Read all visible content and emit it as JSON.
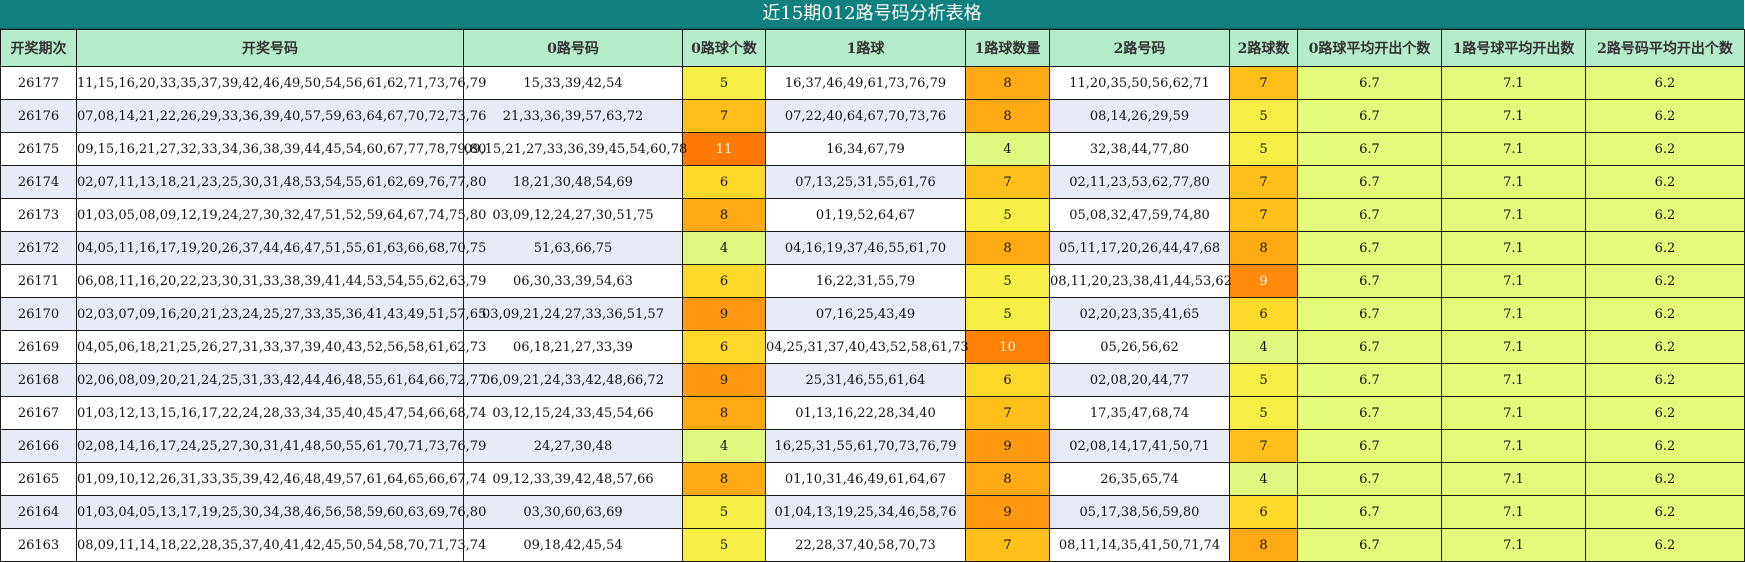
{
  "title": "近15期012路号码分析表格",
  "headers": [
    "开奖期次",
    "开奖号码",
    "0路号码",
    "0路球个数",
    "1路球",
    "1路球数量",
    "2路号码",
    "2路球数",
    "0路球平均开出个数",
    "1路号球平均开出数",
    "2路号码平均开出个数"
  ],
  "rows": [
    {
      "period": "26177",
      "numbers": "11,15,16,20,33,35,37,39,42,46,49,50,54,56,61,62,71,73,76,79",
      "r0": "15,33,39,42,54",
      "c0": "5",
      "r1": "16,37,46,49,61,73,76,79",
      "c1": "8",
      "r2": "11,20,35,50,56,62,71",
      "c2": "7",
      "a0": "6.7",
      "a1": "7.1",
      "a2": "6.2"
    },
    {
      "period": "26176",
      "numbers": "07,08,14,21,22,26,29,33,36,39,40,57,59,63,64,67,70,72,73,76",
      "r0": "21,33,36,39,57,63,72",
      "c0": "7",
      "r1": "07,22,40,64,67,70,73,76",
      "c1": "8",
      "r2": "08,14,26,29,59",
      "c2": "5",
      "a0": "6.7",
      "a1": "7.1",
      "a2": "6.2"
    },
    {
      "period": "26175",
      "numbers": "09,15,16,21,27,32,33,34,36,38,39,44,45,54,60,67,77,78,79,80",
      "r0": "09,15,21,27,33,36,39,45,54,60,78",
      "c0": "11",
      "r1": "16,34,67,79",
      "c1": "4",
      "r2": "32,38,44,77,80",
      "c2": "5",
      "a0": "6.7",
      "a1": "7.1",
      "a2": "6.2"
    },
    {
      "period": "26174",
      "numbers": "02,07,11,13,18,21,23,25,30,31,48,53,54,55,61,62,69,76,77,80",
      "r0": "18,21,30,48,54,69",
      "c0": "6",
      "r1": "07,13,25,31,55,61,76",
      "c1": "7",
      "r2": "02,11,23,53,62,77,80",
      "c2": "7",
      "a0": "6.7",
      "a1": "7.1",
      "a2": "6.2"
    },
    {
      "period": "26173",
      "numbers": "01,03,05,08,09,12,19,24,27,30,32,47,51,52,59,64,67,74,75,80",
      "r0": "03,09,12,24,27,30,51,75",
      "c0": "8",
      "r1": "01,19,52,64,67",
      "c1": "5",
      "r2": "05,08,32,47,59,74,80",
      "c2": "7",
      "a0": "6.7",
      "a1": "7.1",
      "a2": "6.2"
    },
    {
      "period": "26172",
      "numbers": "04,05,11,16,17,19,20,26,37,44,46,47,51,55,61,63,66,68,70,75",
      "r0": "51,63,66,75",
      "c0": "4",
      "r1": "04,16,19,37,46,55,61,70",
      "c1": "8",
      "r2": "05,11,17,20,26,44,47,68",
      "c2": "8",
      "a0": "6.7",
      "a1": "7.1",
      "a2": "6.2"
    },
    {
      "period": "26171",
      "numbers": "06,08,11,16,20,22,23,30,31,33,38,39,41,44,53,54,55,62,63,79",
      "r0": "06,30,33,39,54,63",
      "c0": "6",
      "r1": "16,22,31,55,79",
      "c1": "5",
      "r2": "08,11,20,23,38,41,44,53,62",
      "c2": "9",
      "a0": "6.7",
      "a1": "7.1",
      "a2": "6.2"
    },
    {
      "period": "26170",
      "numbers": "02,03,07,09,16,20,21,23,24,25,27,33,35,36,41,43,49,51,57,65",
      "r0": "03,09,21,24,27,33,36,51,57",
      "c0": "9",
      "r1": "07,16,25,43,49",
      "c1": "5",
      "r2": "02,20,23,35,41,65",
      "c2": "6",
      "a0": "6.7",
      "a1": "7.1",
      "a2": "6.2"
    },
    {
      "period": "26169",
      "numbers": "04,05,06,18,21,25,26,27,31,33,37,39,40,43,52,56,58,61,62,73",
      "r0": "06,18,21,27,33,39",
      "c0": "6",
      "r1": "04,25,31,37,40,43,52,58,61,73",
      "c1": "10",
      "r2": "05,26,56,62",
      "c2": "4",
      "a0": "6.7",
      "a1": "7.1",
      "a2": "6.2"
    },
    {
      "period": "26168",
      "numbers": "02,06,08,09,20,21,24,25,31,33,42,44,46,48,55,61,64,66,72,77",
      "r0": "06,09,21,24,33,42,48,66,72",
      "c0": "9",
      "r1": "25,31,46,55,61,64",
      "c1": "6",
      "r2": "02,08,20,44,77",
      "c2": "5",
      "a0": "6.7",
      "a1": "7.1",
      "a2": "6.2"
    },
    {
      "period": "26167",
      "numbers": "01,03,12,13,15,16,17,22,24,28,33,34,35,40,45,47,54,66,68,74",
      "r0": "03,12,15,24,33,45,54,66",
      "c0": "8",
      "r1": "01,13,16,22,28,34,40",
      "c1": "7",
      "r2": "17,35,47,68,74",
      "c2": "5",
      "a0": "6.7",
      "a1": "7.1",
      "a2": "6.2"
    },
    {
      "period": "26166",
      "numbers": "02,08,14,16,17,24,25,27,30,31,41,48,50,55,61,70,71,73,76,79",
      "r0": "24,27,30,48",
      "c0": "4",
      "r1": "16,25,31,55,61,70,73,76,79",
      "c1": "9",
      "r2": "02,08,14,17,41,50,71",
      "c2": "7",
      "a0": "6.7",
      "a1": "7.1",
      "a2": "6.2"
    },
    {
      "period": "26165",
      "numbers": "01,09,10,12,26,31,33,35,39,42,46,48,49,57,61,64,65,66,67,74",
      "r0": "09,12,33,39,42,48,57,66",
      "c0": "8",
      "r1": "01,10,31,46,49,61,64,67",
      "c1": "8",
      "r2": "26,35,65,74",
      "c2": "4",
      "a0": "6.7",
      "a1": "7.1",
      "a2": "6.2"
    },
    {
      "period": "26164",
      "numbers": "01,03,04,05,13,17,19,25,30,34,38,46,56,58,59,60,63,69,76,80",
      "r0": "03,30,60,63,69",
      "c0": "5",
      "r1": "01,04,13,19,25,34,46,58,76",
      "c1": "9",
      "r2": "05,17,38,56,59,80",
      "c2": "6",
      "a0": "6.7",
      "a1": "7.1",
      "a2": "6.2"
    },
    {
      "period": "26163",
      "numbers": "08,09,11,14,18,22,28,35,37,40,41,42,45,50,54,58,70,71,73,74",
      "r0": "09,18,42,45,54",
      "c0": "5",
      "r1": "22,28,37,40,58,70,73",
      "c1": "7",
      "r2": "08,11,14,35,41,50,71,74",
      "c2": "8",
      "a0": "6.7",
      "a1": "7.1",
      "a2": "6.2"
    }
  ]
}
